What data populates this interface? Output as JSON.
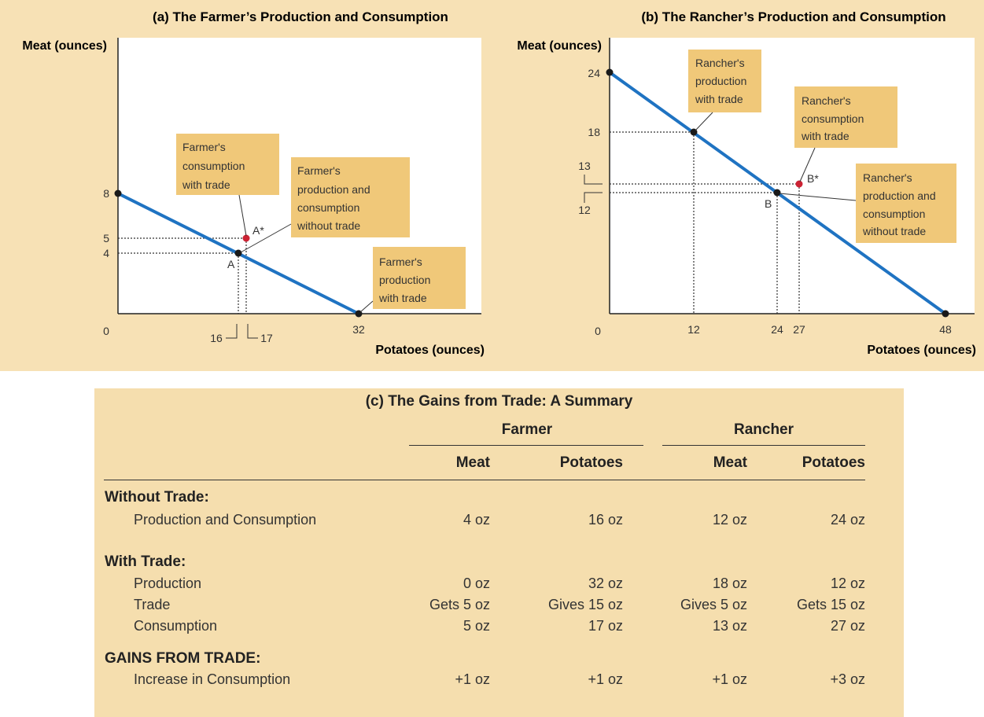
{
  "chart_data": [
    {
      "type": "line",
      "title": "(a) The Farmer’s Production and Consumption",
      "xlabel": "Potatoes (ounces)",
      "ylabel": "Meat (ounces)",
      "xlim": [
        0,
        47
      ],
      "ylim": [
        0,
        18.5
      ],
      "x_ticks": [
        "0",
        "16",
        "17",
        "32"
      ],
      "y_ticks": [
        "8",
        "5",
        "4"
      ],
      "series": [
        {
          "values": [
            {
              "x": 0,
              "y": 8
            },
            {
              "x": 32,
              "y": 0
            }
          ],
          "color": "#1f73c2"
        }
      ],
      "points": [
        {
          "label": "A",
          "x": 16,
          "y": 4,
          "color": "#1a1a1a"
        },
        {
          "label": "A*",
          "x": 17,
          "y": 5,
          "color": "#cc2233"
        },
        {
          "label": "",
          "x": 0,
          "y": 8,
          "color": "#1a1a1a"
        },
        {
          "label": "",
          "x": 32,
          "y": 0,
          "color": "#1a1a1a"
        }
      ],
      "annotations": [
        "Farmer's consumption with trade",
        "Farmer's production and consumption without trade",
        "Farmer's production with trade"
      ]
    },
    {
      "type": "line",
      "title": "(b) The Rancher’s Production and Consumption",
      "xlabel": "Potatoes (ounces)",
      "ylabel": "Meat (ounces)",
      "xlim": [
        0,
        50
      ],
      "ylim": [
        0,
        27
      ],
      "x_ticks": [
        "0",
        "12",
        "24",
        "27",
        "48"
      ],
      "y_ticks": [
        "24",
        "18",
        "13",
        "12"
      ],
      "series": [
        {
          "values": [
            {
              "x": 0,
              "y": 24
            },
            {
              "x": 48,
              "y": 0
            }
          ],
          "color": "#1f73c2"
        }
      ],
      "points": [
        {
          "label": "B",
          "x": 24,
          "y": 12,
          "color": "#1a1a1a"
        },
        {
          "label": "B*",
          "x": 27,
          "y": 13,
          "color": "#cc2233"
        },
        {
          "label": "",
          "x": 12,
          "y": 18,
          "color": "#1a1a1a"
        },
        {
          "label": "",
          "x": 0,
          "y": 24,
          "color": "#1a1a1a"
        },
        {
          "label": "",
          "x": 48,
          "y": 0,
          "color": "#1a1a1a"
        }
      ],
      "annotations": [
        "Rancher's production with trade",
        "Rancher's consumption with trade",
        "Rancher's production and consumption without trade"
      ]
    },
    {
      "type": "table",
      "title": "(c) The Gains from Trade: A Summary",
      "groups": [
        "Farmer",
        "Rancher"
      ],
      "columns": [
        "Meat",
        "Potatoes",
        "Meat",
        "Potatoes"
      ],
      "sections": [
        {
          "heading": "Without Trade:",
          "rows": [
            {
              "label": "Production and Consumption",
              "cells": [
                "4 oz",
                "16 oz",
                "12 oz",
                "24 oz"
              ]
            }
          ]
        },
        {
          "heading": "With Trade:",
          "rows": [
            {
              "label": "Production",
              "cells": [
                "0 oz",
                "32 oz",
                "18 oz",
                "12 oz"
              ]
            },
            {
              "label": "Trade",
              "cells": [
                "Gets 5 oz",
                "Gives 15 oz",
                "Gives 5 oz",
                "Gets 15 oz"
              ]
            },
            {
              "label": "Consumption",
              "cells": [
                "5 oz",
                "17 oz",
                "13 oz",
                "27 oz"
              ]
            }
          ]
        },
        {
          "heading": "GAINS FROM TRADE:",
          "rows": [
            {
              "label": "Increase in Consumption",
              "cells": [
                "+1 oz",
                "+1 oz",
                "+1 oz",
                "+3 oz"
              ]
            }
          ]
        }
      ]
    }
  ],
  "colors": {
    "panel_bg": "#f7e1b5",
    "box_bg": "#f0c879",
    "line": "#1f73c2",
    "point_with_trade": "#cc2233",
    "point": "#1a1a1a"
  }
}
